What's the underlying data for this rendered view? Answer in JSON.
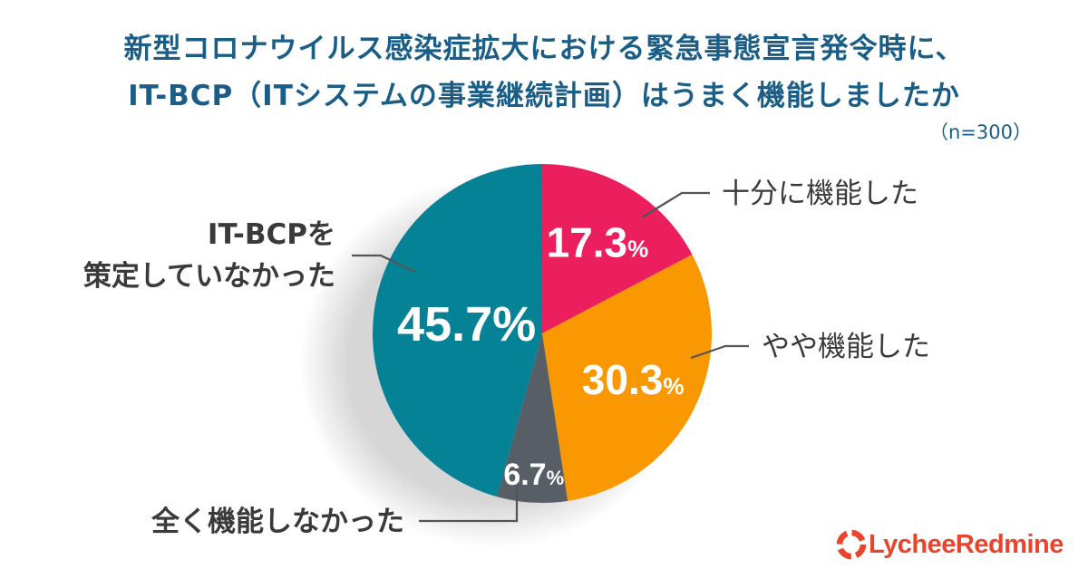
{
  "title_line1": "新型コロナウイルス感染症拡大における緊急事態宣言発令時に、",
  "title_line2": "IT-BCP（ITシステムの事業継続計画）はうまく機能しましたか",
  "sample_size": "（n=300）",
  "logo_text": "LycheeRedmine",
  "colors": {
    "title": "#1a5d86",
    "brand": "#e8452c"
  },
  "chart_data": {
    "type": "pie",
    "title": "新型コロナウイルス感染症拡大における緊急事態宣言発令時に、IT-BCP（ITシステムの事業継続計画）はうまく機能しましたか",
    "categories": [
      "十分に機能した",
      "やや機能した",
      "全く機能しなかった",
      "IT-BCPを策定していなかった"
    ],
    "values": [
      17.3,
      30.3,
      6.7,
      45.7
    ],
    "value_labels": [
      "17.3",
      "30.3",
      "6.7",
      "45.7"
    ],
    "unit": "%",
    "colors": [
      "#ec1f5e",
      "#f99800",
      "#575e65",
      "#058296"
    ],
    "start_angle": "12 o'clock, clockwise"
  }
}
